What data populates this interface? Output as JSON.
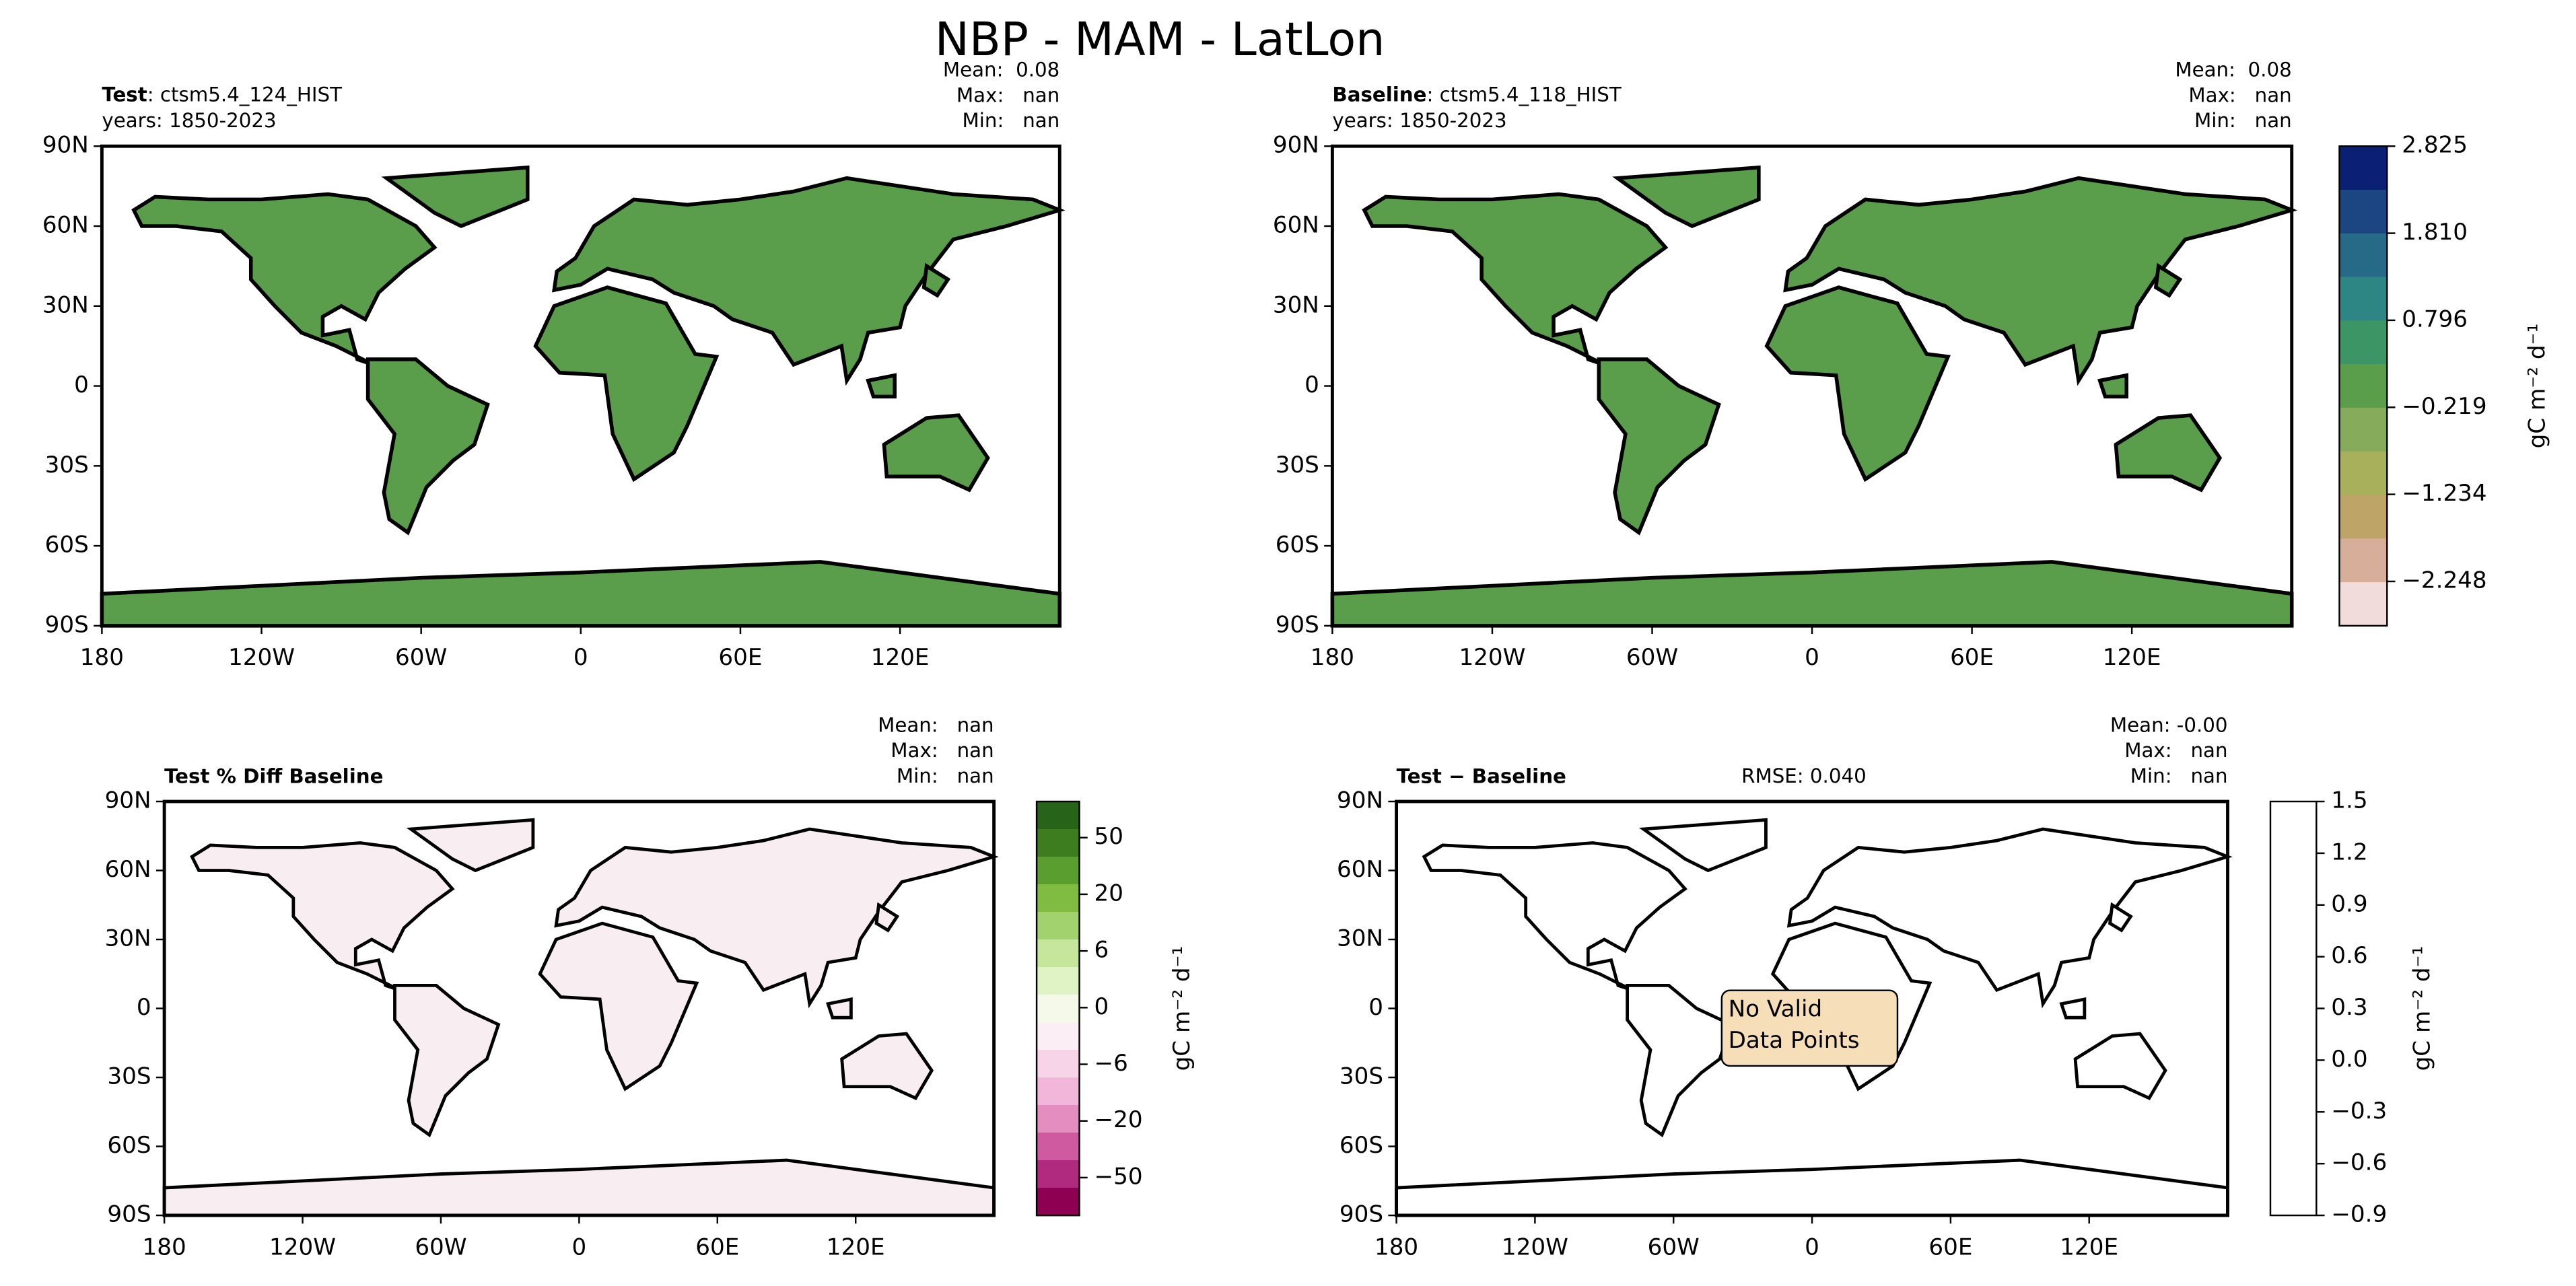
{
  "title": "NBP - MAM - LatLon",
  "lat_ticks": [
    "90N",
    "60N",
    "30N",
    "0",
    "30S",
    "60S",
    "90S"
  ],
  "lon_ticks": [
    "180",
    "120W",
    "60W",
    "0",
    "60E",
    "120E"
  ],
  "panels": [
    {
      "label": "Test",
      "name": ": ctsm5.4_124_HIST",
      "years": "years: 1850-2023",
      "stats": [
        "Mean:  0.08",
        "Max:   nan",
        "Min:   nan"
      ],
      "land_color": "#5a9e4b"
    },
    {
      "label": "Baseline",
      "name": ": ctsm5.4_118_HIST",
      "years": "years: 1850-2023",
      "stats": [
        "Mean:  0.08",
        "Max:   nan",
        "Min:   nan"
      ],
      "land_color": "#5a9e4b"
    },
    {
      "label": "Test % Diff Baseline",
      "stats": [
        "Mean:   nan",
        "Max:   nan",
        "Min:   nan"
      ],
      "land_color": "#f8eef2"
    },
    {
      "label": "Test − Baseline",
      "rmse": "RMSE: 0.040",
      "note": [
        "No Valid",
        "Data Points"
      ],
      "stats": [
        "Mean: -0.00",
        "Max:   nan",
        "Min:   nan"
      ],
      "land_color": "#ffffff"
    }
  ],
  "colorbars": [
    {
      "units": "gC m⁻² d⁻¹",
      "ticks": [
        "2.825",
        "1.810",
        "0.796",
        "−0.219",
        "−1.234",
        "−2.248"
      ],
      "colors": [
        "#0b1f74",
        "#1b4682",
        "#266a87",
        "#2d8584",
        "#3b9565",
        "#5a9e4b",
        "#86ab5a",
        "#a8b05c",
        "#bea467",
        "#d6ae9a",
        "#f1dcdb"
      ]
    },
    {
      "units": "gC m⁻² d⁻¹",
      "ticks": [
        "50",
        "20",
        "6",
        "0",
        "−6",
        "−20",
        "−50"
      ],
      "colors": [
        "#276419",
        "#3d7d1f",
        "#5a9e2f",
        "#7fbc41",
        "#a2d26d",
        "#c5e69b",
        "#e0f3c4",
        "#f4f9ea",
        "#fbeef4",
        "#f7d4e8",
        "#f1b6da",
        "#e38dc0",
        "#cf5a9f",
        "#b02a80",
        "#8e0152"
      ]
    },
    {
      "units": "gC m⁻² d⁻¹",
      "ticks": [
        "1.5",
        "1.2",
        "0.9",
        "0.6",
        "0.3",
        "0.0",
        "−0.3",
        "−0.6",
        "−0.9"
      ],
      "colors": [
        "#ffffff"
      ]
    }
  ]
}
